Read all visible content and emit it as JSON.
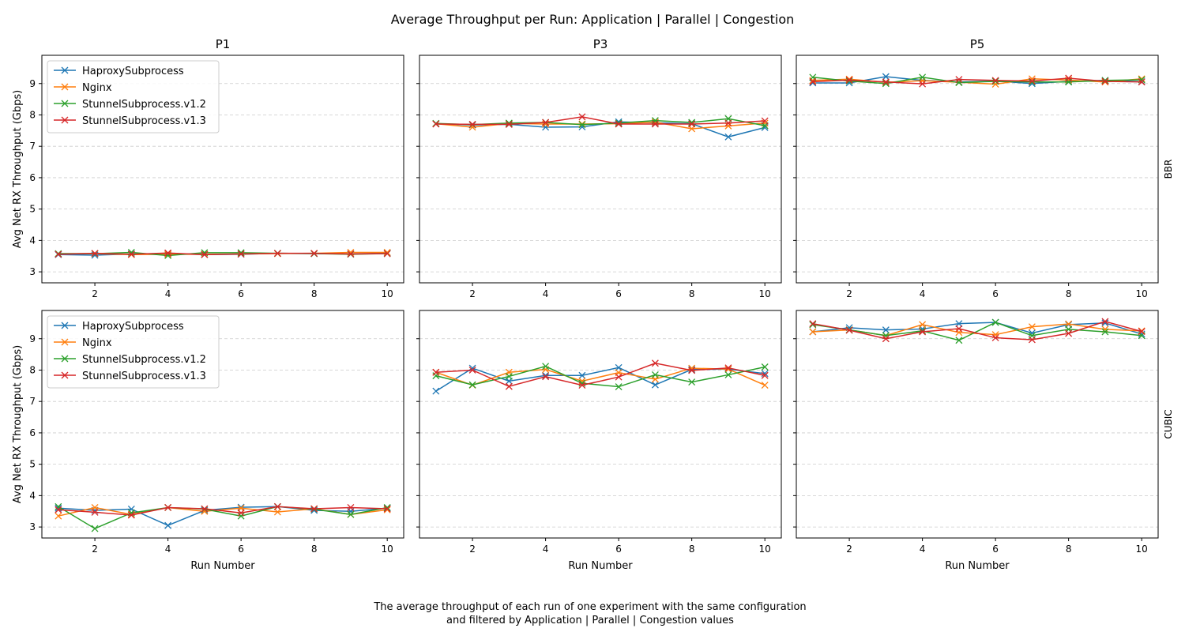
{
  "figure": {
    "title": "Average Throughput per Run: Application | Parallel | Congestion",
    "caption_line1": "The average throughput of each run of one experiment with the same configuration",
    "caption_line2": "and filtered by Application | Parallel | Congestion values"
  },
  "colors": {
    "HaproxySubprocess": "#1f77b4",
    "Nginx": "#ff7f0e",
    "StunnelSubprocess.v1.2": "#2ca02c",
    "StunnelSubprocess.v1.3": "#d62728"
  },
  "chart_data": {
    "type": "line",
    "marker": "x",
    "grid": "y-dashed",
    "columns": [
      "P1",
      "P3",
      "P5"
    ],
    "rows": [
      "BBR",
      "CUBIC"
    ],
    "xlabel": "Run Number",
    "ylabel": "Avg Net RX Throughput (Gbps)",
    "x": [
      1,
      2,
      3,
      4,
      5,
      6,
      7,
      8,
      9,
      10
    ],
    "xticks": [
      2,
      4,
      6,
      8,
      10
    ],
    "ylim": [
      2.65,
      9.9
    ],
    "yticks": [
      3,
      4,
      5,
      6,
      7,
      8,
      9
    ],
    "legend": {
      "placement": "top-left",
      "entries": [
        "HaproxySubprocess",
        "Nginx",
        "StunnelSubprocess.v1.2",
        "StunnelSubprocess.v1.3"
      ]
    },
    "panels": [
      {
        "row": "BBR",
        "column": "P1",
        "series": [
          {
            "name": "HaproxySubprocess",
            "values": [
              3.55,
              3.53,
              3.57,
              3.58,
              3.55,
              3.56,
              3.59,
              3.58,
              3.57,
              3.6
            ]
          },
          {
            "name": "Nginx",
            "values": [
              3.57,
              3.58,
              3.55,
              3.56,
              3.56,
              3.57,
              3.58,
              3.59,
              3.62,
              3.62
            ]
          },
          {
            "name": "StunnelSubprocess.v1.2",
            "values": [
              3.58,
              3.58,
              3.62,
              3.52,
              3.61,
              3.61,
              3.59,
              3.58,
              3.56,
              3.58
            ]
          },
          {
            "name": "StunnelSubprocess.v1.3",
            "values": [
              3.56,
              3.59,
              3.56,
              3.6,
              3.55,
              3.57,
              3.59,
              3.59,
              3.57,
              3.58
            ]
          }
        ]
      },
      {
        "row": "BBR",
        "column": "P3",
        "series": [
          {
            "name": "HaproxySubprocess",
            "values": [
              7.72,
              7.68,
              7.7,
              7.61,
              7.62,
              7.78,
              7.75,
              7.72,
              7.3,
              7.6
            ]
          },
          {
            "name": "Nginx",
            "values": [
              7.72,
              7.61,
              7.73,
              7.71,
              7.71,
              7.72,
              7.77,
              7.56,
              7.65,
              7.74
            ]
          },
          {
            "name": "StunnelSubprocess.v1.2",
            "values": [
              7.73,
              7.69,
              7.74,
              7.76,
              7.69,
              7.74,
              7.82,
              7.76,
              7.88,
              7.66
            ]
          },
          {
            "name": "StunnelSubprocess.v1.3",
            "values": [
              7.71,
              7.7,
              7.7,
              7.76,
              7.94,
              7.71,
              7.71,
              7.71,
              7.74,
              7.81
            ]
          }
        ]
      },
      {
        "row": "BBR",
        "column": "P5",
        "series": [
          {
            "name": "HaproxySubprocess",
            "values": [
              9.02,
              9.02,
              9.22,
              9.1,
              9.05,
              9.08,
              9.0,
              9.07,
              9.1,
              9.06
            ]
          },
          {
            "name": "Nginx",
            "values": [
              9.1,
              9.14,
              9.04,
              9.09,
              9.04,
              8.98,
              9.15,
              9.11,
              9.05,
              9.15
            ]
          },
          {
            "name": "StunnelSubprocess.v1.2",
            "values": [
              9.2,
              9.08,
              9.0,
              9.2,
              9.03,
              9.07,
              9.05,
              9.05,
              9.1,
              9.12
            ]
          },
          {
            "name": "StunnelSubprocess.v1.3",
            "values": [
              9.06,
              9.11,
              9.05,
              8.99,
              9.13,
              9.1,
              9.08,
              9.17,
              9.07,
              9.05
            ]
          }
        ]
      },
      {
        "row": "CUBIC",
        "column": "P1",
        "series": [
          {
            "name": "HaproxySubprocess",
            "values": [
              3.6,
              3.53,
              3.57,
              3.05,
              3.53,
              3.63,
              3.65,
              3.53,
              3.5,
              3.6
            ]
          },
          {
            "name": "Nginx",
            "values": [
              3.35,
              3.62,
              3.4,
              3.62,
              3.5,
              3.6,
              3.48,
              3.58,
              3.4,
              3.55
            ]
          },
          {
            "name": "StunnelSubprocess.v1.2",
            "values": [
              3.65,
              2.95,
              3.45,
              3.62,
              3.57,
              3.35,
              3.65,
              3.57,
              3.4,
              3.62
            ]
          },
          {
            "name": "StunnelSubprocess.v1.3",
            "values": [
              3.55,
              3.47,
              3.38,
              3.62,
              3.58,
              3.45,
              3.65,
              3.58,
              3.62,
              3.58
            ]
          }
        ]
      },
      {
        "row": "CUBIC",
        "column": "P3",
        "series": [
          {
            "name": "HaproxySubprocess",
            "values": [
              7.33,
              8.06,
              7.65,
              7.83,
              7.83,
              8.08,
              7.53,
              8.02,
              8.03,
              7.89
            ]
          },
          {
            "name": "Nginx",
            "values": [
              7.93,
              7.52,
              7.93,
              8.02,
              7.65,
              7.92,
              7.71,
              8.06,
              8.03,
              7.52
            ]
          },
          {
            "name": "StunnelSubprocess.v1.2",
            "values": [
              7.82,
              7.53,
              7.8,
              8.12,
              7.58,
              7.47,
              7.85,
              7.62,
              7.85,
              8.1
            ]
          },
          {
            "name": "StunnelSubprocess.v1.3",
            "values": [
              7.93,
              8.0,
              7.48,
              7.79,
              7.52,
              7.78,
              8.22,
              7.99,
              8.07,
              7.83
            ]
          }
        ]
      },
      {
        "row": "CUBIC",
        "column": "P5",
        "series": [
          {
            "name": "HaproxySubprocess",
            "values": [
              9.22,
              9.35,
              9.28,
              9.31,
              9.48,
              9.52,
              9.18,
              9.45,
              9.5,
              9.15
            ]
          },
          {
            "name": "Nginx",
            "values": [
              9.22,
              9.28,
              9.1,
              9.45,
              9.2,
              9.13,
              9.38,
              9.47,
              9.3,
              9.25
            ]
          },
          {
            "name": "StunnelSubprocess.v1.2",
            "values": [
              9.45,
              9.28,
              9.1,
              9.25,
              8.95,
              9.52,
              9.1,
              9.3,
              9.22,
              9.1
            ]
          },
          {
            "name": "StunnelSubprocess.v1.3",
            "values": [
              9.48,
              9.27,
              9.0,
              9.22,
              9.32,
              9.03,
              8.97,
              9.17,
              9.55,
              9.23
            ]
          }
        ]
      }
    ]
  }
}
